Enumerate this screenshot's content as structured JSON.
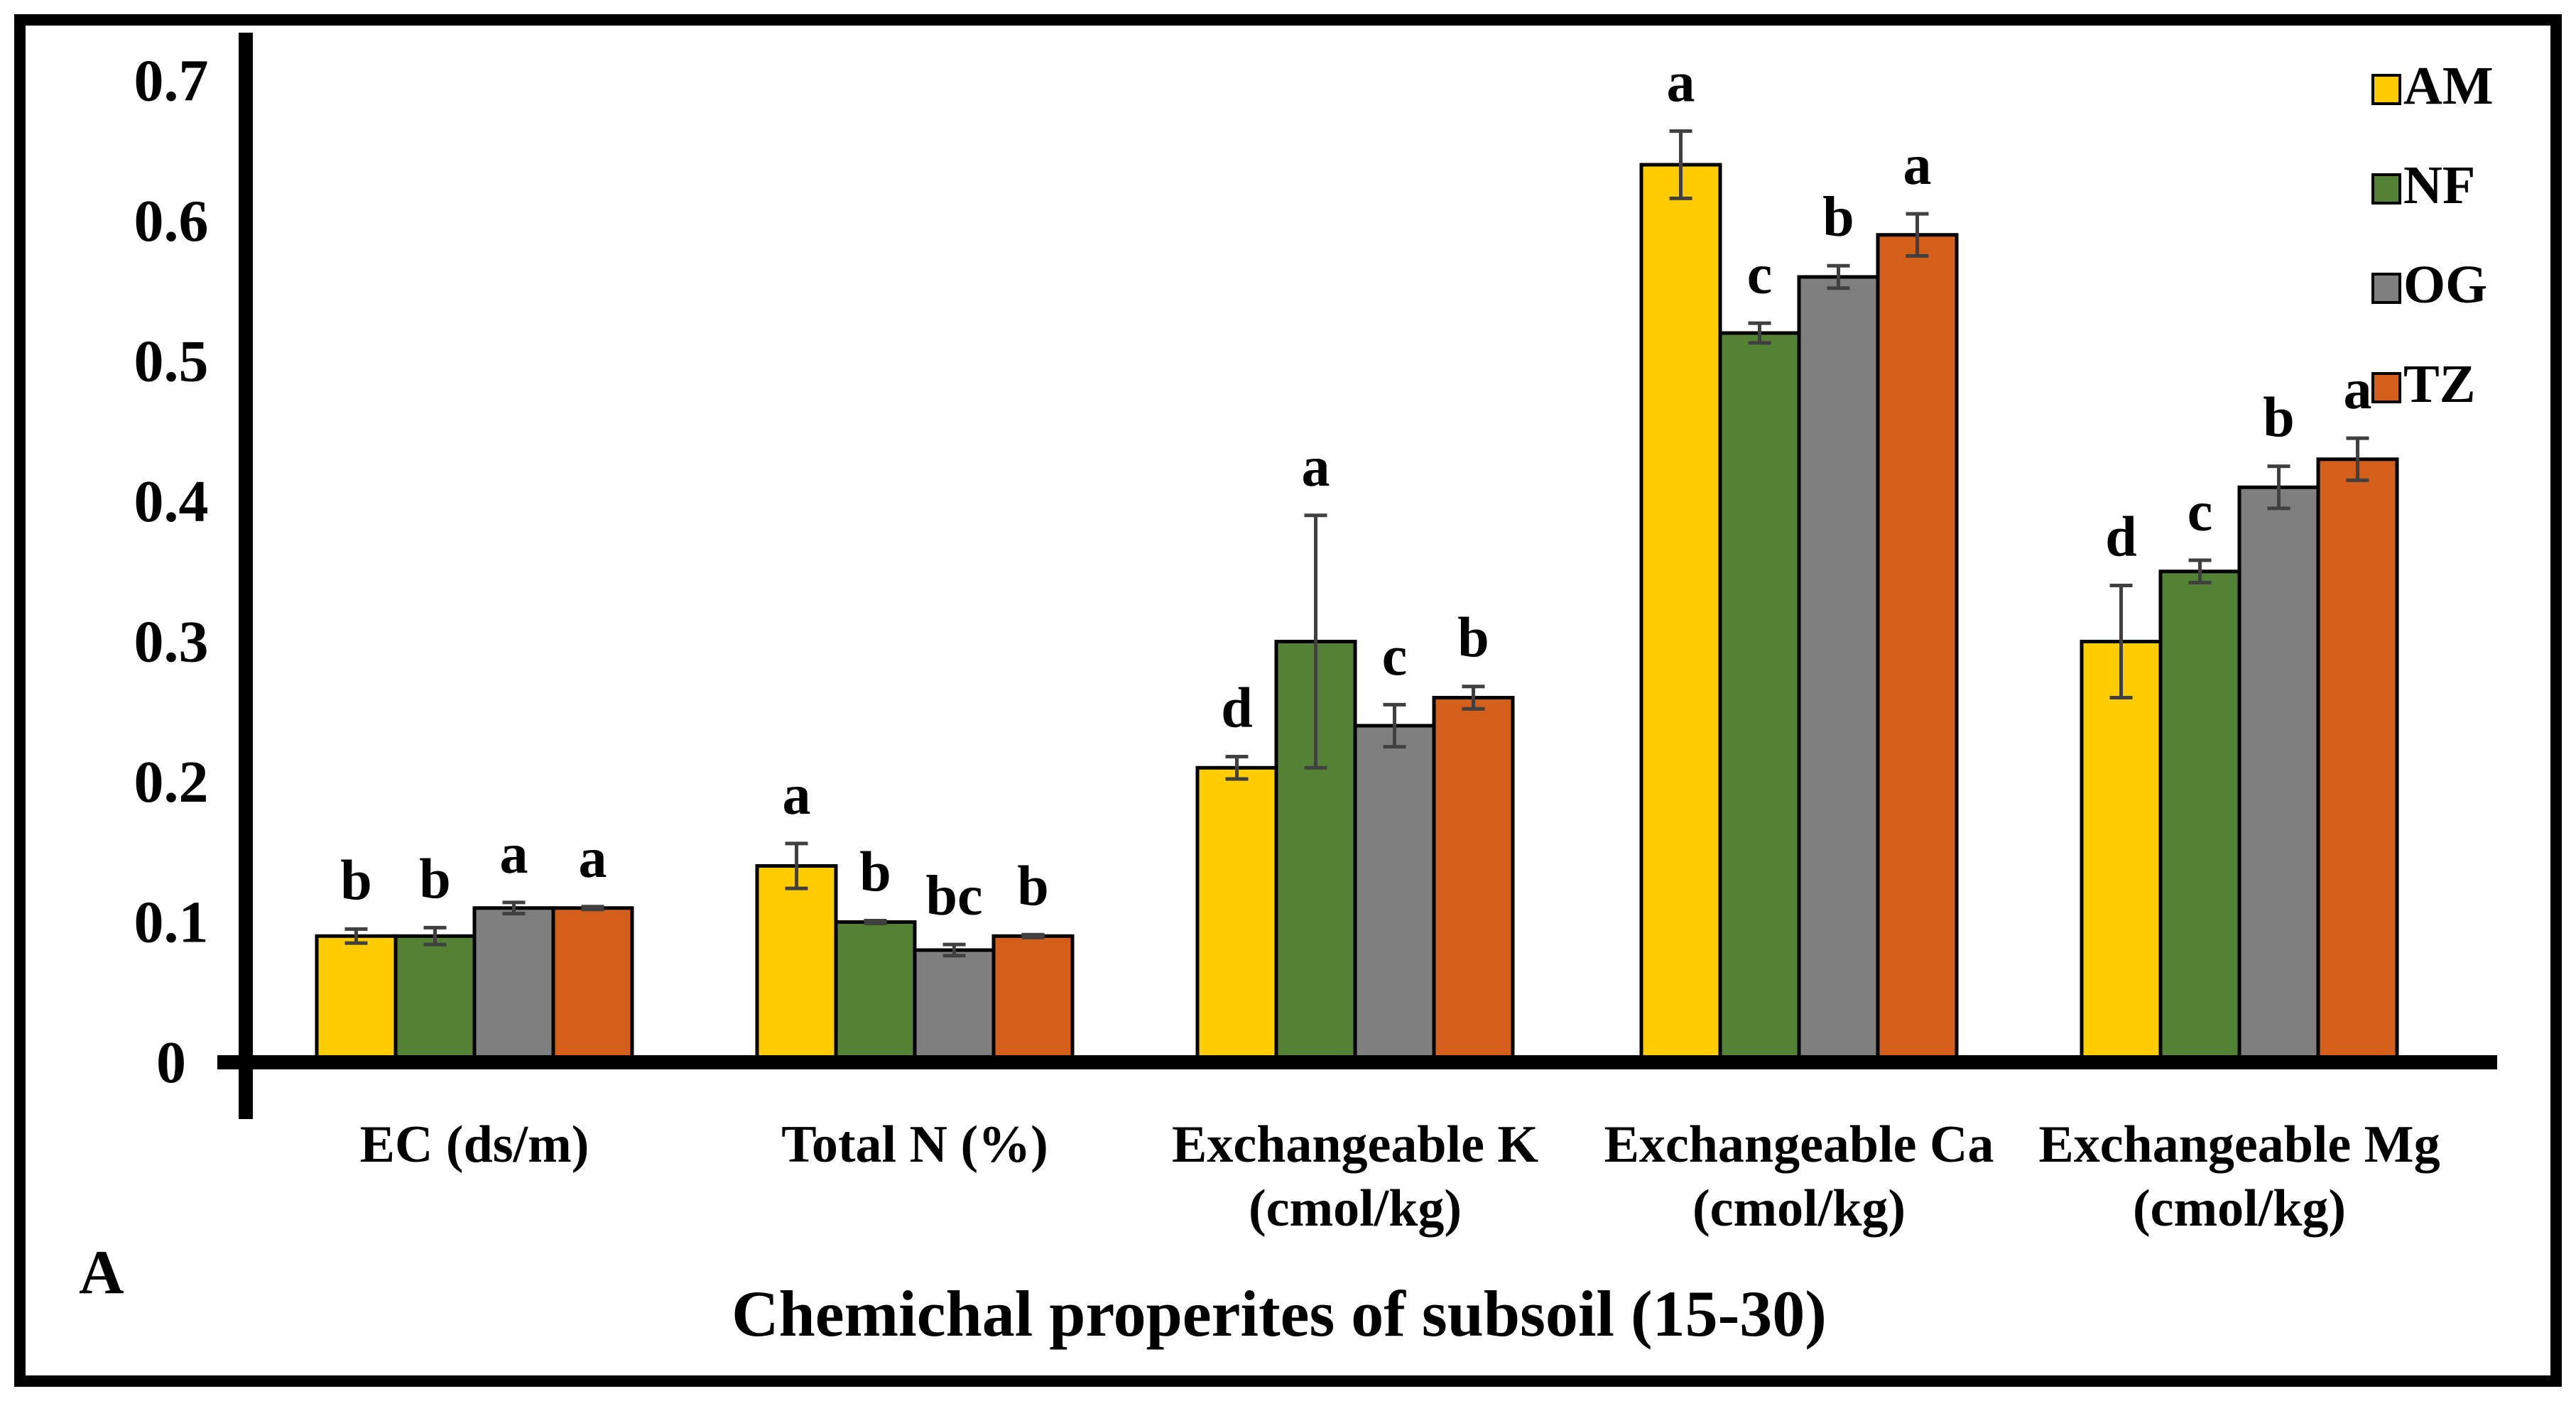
{
  "panel_label": "A",
  "colors": {
    "AM": "#FFCC00",
    "NF": "#548235",
    "OG": "#7F7F7F",
    "TZ": "#D35F1A",
    "axis": "#000000",
    "error_bar": "#404040"
  },
  "chart_data": {
    "type": "bar",
    "title": "",
    "xlabel": "Chemichal properites of subsoil (15-30)",
    "ylabel": "",
    "ylim": [
      0,
      0.7
    ],
    "yticks": [
      "0",
      "0.1",
      "0.2",
      "0.3",
      "0.4",
      "0.5",
      "0.6",
      "0.7"
    ],
    "legend_position": "top-right",
    "categories": [
      [
        "EC (ds/m)"
      ],
      [
        "Total N (%)"
      ],
      [
        "Exchangeable K",
        "(cmol/kg)"
      ],
      [
        "Exchangeable Ca",
        "(cmol/kg)"
      ],
      [
        "Exchangeable Mg",
        "(cmol/kg)"
      ]
    ],
    "series": [
      {
        "name": "AM",
        "values": [
          0.09,
          0.14,
          0.21,
          0.64,
          0.3
        ],
        "errors": [
          0.005,
          0.016,
          0.008,
          0.024,
          0.04
        ],
        "letters": [
          "b",
          "a",
          "d",
          "a",
          "d"
        ]
      },
      {
        "name": "NF",
        "values": [
          0.09,
          0.1,
          0.3,
          0.52,
          0.35
        ],
        "errors": [
          0.006,
          0.001,
          0.09,
          0.007,
          0.008
        ],
        "letters": [
          "b",
          "b",
          "a",
          "c",
          "c"
        ]
      },
      {
        "name": "OG",
        "values": [
          0.11,
          0.08,
          0.24,
          0.56,
          0.41
        ],
        "errors": [
          0.004,
          0.004,
          0.015,
          0.008,
          0.015
        ],
        "letters": [
          "a",
          "bc",
          "c",
          "b",
          "b"
        ]
      },
      {
        "name": "TZ",
        "values": [
          0.11,
          0.09,
          0.26,
          0.59,
          0.43
        ],
        "errors": [
          0.001,
          0.001,
          0.008,
          0.015,
          0.015
        ],
        "letters": [
          "a",
          "b",
          "b",
          "a",
          "a"
        ]
      }
    ]
  }
}
